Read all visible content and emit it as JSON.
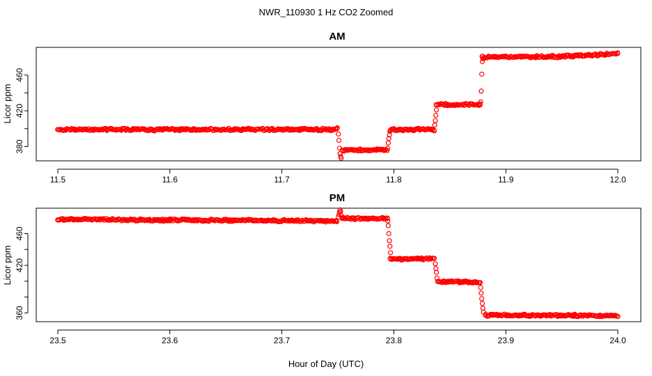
{
  "figure": {
    "title": "NWR_110930  1 Hz CO2 Zoomed",
    "xlabel": "Hour of Day (UTC)"
  },
  "chart_data": [
    {
      "type": "scatter",
      "title": "AM",
      "ylabel": "Licor ppm",
      "xlim": [
        11.5,
        12.0
      ],
      "ylim": [
        364,
        491
      ],
      "xticks": [
        "11.5",
        "11.6",
        "11.7",
        "11.8",
        "11.9",
        "12.0"
      ],
      "yticks": [
        "380",
        "420",
        "460"
      ],
      "grid": false,
      "marker_color": "#ff0000",
      "segments": [
        {
          "x_start": 11.5,
          "x_end": 11.749,
          "y_start": 399,
          "y_end": 399
        },
        {
          "x_start": 11.754,
          "x_end": 11.794,
          "y_start": 376,
          "y_end": 376
        },
        {
          "x_start": 11.797,
          "x_end": 11.836,
          "y_start": 399,
          "y_end": 399
        },
        {
          "x_start": 11.838,
          "x_end": 11.877,
          "y_start": 427,
          "y_end": 427
        },
        {
          "x_start": 11.879,
          "x_end": 11.96,
          "y_start": 480,
          "y_end": 481
        },
        {
          "x_start": 11.96,
          "x_end": 12.0,
          "y_start": 481,
          "y_end": 484
        }
      ],
      "transition_points": [
        [
          11.7495,
          401
        ],
        [
          11.7505,
          394
        ],
        [
          11.751,
          387
        ],
        [
          11.7515,
          378
        ],
        [
          11.752,
          372
        ],
        [
          11.7525,
          369
        ],
        [
          11.753,
          367
        ],
        [
          11.7945,
          378
        ],
        [
          11.795,
          384
        ],
        [
          11.7955,
          389
        ],
        [
          11.796,
          393
        ],
        [
          11.7965,
          397
        ],
        [
          11.8365,
          404
        ],
        [
          11.837,
          409
        ],
        [
          11.8375,
          415
        ],
        [
          11.838,
          421
        ],
        [
          11.8775,
          430
        ],
        [
          11.878,
          442
        ],
        [
          11.8785,
          461
        ],
        [
          11.879,
          475
        ],
        [
          11.8795,
          478
        ]
      ]
    },
    {
      "type": "scatter",
      "title": "PM",
      "ylabel": "Licor ppm",
      "xlim": [
        23.5,
        24.0
      ],
      "ylim": [
        349,
        492
      ],
      "xticks": [
        "23.5",
        "23.6",
        "23.7",
        "23.8",
        "23.9",
        "24.0"
      ],
      "yticks": [
        "360",
        "420",
        "460"
      ],
      "grid": false,
      "marker_color": "#ff0000",
      "segments": [
        {
          "x_start": 23.5,
          "x_end": 23.6,
          "y_start": 478,
          "y_end": 477
        },
        {
          "x_start": 23.6,
          "x_end": 23.749,
          "y_start": 477,
          "y_end": 476
        },
        {
          "x_start": 23.754,
          "x_end": 23.794,
          "y_start": 479,
          "y_end": 479
        },
        {
          "x_start": 23.797,
          "x_end": 23.836,
          "y_start": 428,
          "y_end": 428
        },
        {
          "x_start": 23.839,
          "x_end": 23.877,
          "y_start": 399,
          "y_end": 399
        },
        {
          "x_start": 23.882,
          "x_end": 23.96,
          "y_start": 357,
          "y_end": 357
        },
        {
          "x_start": 23.96,
          "x_end": 24.0,
          "y_start": 357,
          "y_end": 356
        }
      ],
      "transition_points": [
        [
          23.7505,
          481
        ],
        [
          23.751,
          484
        ],
        [
          23.7515,
          487
        ],
        [
          23.752,
          490
        ],
        [
          23.7525,
          488
        ],
        [
          23.753,
          483
        ],
        [
          23.7945,
          476
        ],
        [
          23.795,
          470
        ],
        [
          23.7955,
          460
        ],
        [
          23.796,
          451
        ],
        [
          23.7965,
          444
        ],
        [
          23.797,
          436
        ],
        [
          23.837,
          422
        ],
        [
          23.8375,
          416
        ],
        [
          23.838,
          411
        ],
        [
          23.8385,
          404
        ],
        [
          23.8775,
          392
        ],
        [
          23.878,
          385
        ],
        [
          23.8785,
          378
        ],
        [
          23.879,
          372
        ],
        [
          23.8795,
          366
        ],
        [
          23.88,
          361
        ]
      ]
    }
  ]
}
